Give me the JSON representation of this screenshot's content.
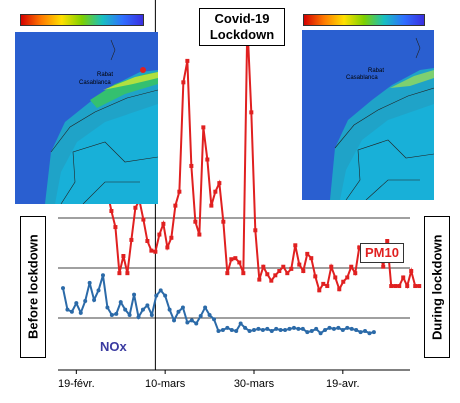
{
  "chart_data": {
    "type": "line",
    "x_tick_labels": [
      "19-févr.",
      "10-mars",
      "30-mars",
      "19-avr."
    ],
    "x_ticks_days_from_start": [
      0,
      20,
      40,
      60
    ],
    "lockdown_day": 20.5,
    "series": [
      {
        "name": "PM10",
        "color": "#e02020",
        "y_start_day": 12,
        "values": [
          88,
          70,
          55,
          12,
          28,
          12,
          43,
          73,
          80,
          62,
          42,
          33,
          32,
          48,
          58,
          36,
          45,
          75,
          88,
          190,
          210,
          112,
          60,
          48,
          148,
          118,
          75,
          88,
          96,
          60,
          12,
          25,
          26,
          22,
          12,
          245,
          162,
          52,
          6,
          18,
          11,
          5,
          10,
          14,
          18,
          12,
          16,
          38,
          20,
          14,
          30,
          26,
          9,
          -4,
          2,
          0,
          18,
          8,
          -3,
          4,
          8,
          18,
          12,
          36,
          30,
          36,
          36,
          30,
          34,
          18,
          42,
          0,
          0,
          0,
          8,
          0,
          14,
          0,
          0
        ]
      },
      {
        "name": "NOx",
        "color": "#2b6aa8",
        "values": [
          -2,
          -22,
          -24,
          -16,
          -25,
          -14,
          3,
          -13,
          -4,
          10,
          -20,
          -27,
          -26,
          -15,
          -22,
          -27,
          -8,
          -29,
          -22,
          -18,
          -27,
          -9,
          -4,
          -9,
          -22,
          -32,
          -24,
          -20,
          -34,
          -32,
          -35,
          -28,
          -20,
          -27,
          -31,
          -42,
          -41,
          -39,
          -41,
          -42,
          -35,
          -39,
          -42,
          -41,
          -40,
          -41,
          -40,
          -42,
          -40,
          -41,
          -41,
          -40,
          -39,
          -40,
          -40,
          -43,
          -42,
          -40,
          -44,
          -41,
          -39,
          -40,
          -39,
          -41,
          -39,
          -40,
          -41,
          -43,
          -42,
          -44,
          -43
        ]
      }
    ],
    "ylim": [
      -55,
      250
    ],
    "grid": "horizontal",
    "legend": "inline labels"
  },
  "labels": {
    "covid": "Covid-19\nLockdown",
    "covid_line1": "Covid-19",
    "covid_line2": "Lockdown",
    "before": "Before lockdown",
    "during": "During lockdown",
    "pm10": "PM10",
    "nox": "NOx"
  },
  "maps": [
    {
      "cities": [
        "Rabat",
        "Casablanca"
      ]
    },
    {
      "cities": [
        "Rabat",
        "Casablanca"
      ]
    }
  ],
  "colors": {
    "map_ocean": "#2a5fd0",
    "map_land": "#1fa3c8",
    "grid": "#000000"
  }
}
